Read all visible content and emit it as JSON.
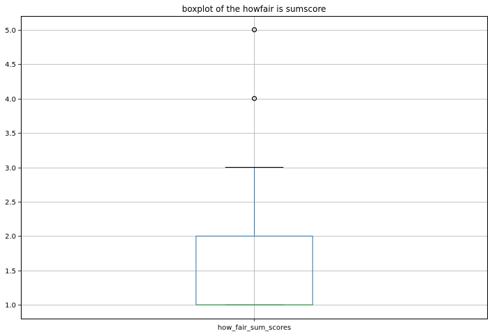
{
  "chart_data": {
    "type": "boxplot",
    "title": "boxplot of the howfair is sumscore",
    "xlabel": "",
    "ylabel": "",
    "categories": [
      "how_fair_sum_scores"
    ],
    "boxes": [
      {
        "category": "how_fair_sum_scores",
        "whisker_low": 1.0,
        "q1": 1.0,
        "median": 1.0,
        "q3": 2.0,
        "whisker_high": 3.0,
        "outliers": [
          4.0,
          5.0
        ]
      }
    ],
    "ylim": [
      0.8,
      5.2
    ],
    "yticks": [
      "1.0",
      "1.5",
      "2.0",
      "2.5",
      "3.0",
      "3.5",
      "4.0",
      "4.5",
      "5.0"
    ],
    "grid": true,
    "colors": {
      "box": "#1f77b4",
      "median": "#2ca02c",
      "whisker": "#000000",
      "grid": "#b0b0b0",
      "outlier": "#000000"
    }
  }
}
